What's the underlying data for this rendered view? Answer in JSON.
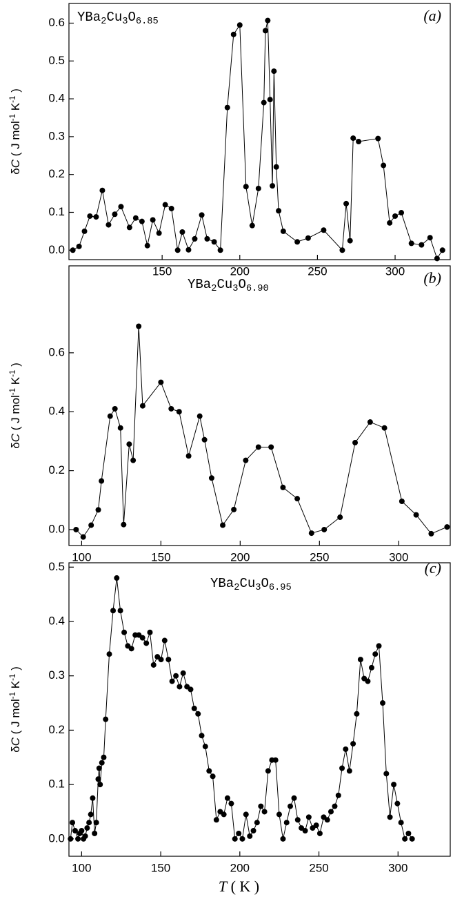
{
  "chart_data": [
    {
      "type": "line",
      "color": "#000000",
      "title_parts": [
        {
          "text": "YBa",
          "style": "normal"
        },
        {
          "text": "2",
          "style": "sub"
        },
        {
          "text": "Cu",
          "style": "normal"
        },
        {
          "text": "3",
          "style": "sub"
        },
        {
          "text": "O",
          "style": "normal"
        },
        {
          "text": "6.85",
          "style": "sub"
        }
      ],
      "panel_label": "(a)",
      "y_label_parts": [
        {
          "text": "δ",
          "style": "normal"
        },
        {
          "text": "C",
          "style": "italic"
        },
        {
          "text": " ( J mol",
          "style": "normal"
        },
        {
          "text": "-1",
          "style": "sup"
        },
        {
          "text": " K",
          "style": "normal"
        },
        {
          "text": "-1",
          "style": "sup"
        },
        {
          "text": " )",
          "style": "normal"
        }
      ],
      "x": [
        92.5,
        96.5,
        100,
        103.5,
        107.5,
        111.5,
        115.5,
        119.5,
        123.5,
        129,
        133,
        137,
        140.5,
        144,
        148,
        152,
        156,
        160,
        163,
        167,
        171,
        175.5,
        179,
        183.5,
        187.5,
        192,
        196,
        200,
        204,
        208,
        212,
        215.5,
        216.5,
        218,
        219.5,
        221,
        222,
        223.5,
        225,
        228,
        237,
        244,
        254,
        266,
        268.5,
        271,
        273,
        276.5,
        289,
        292.5,
        296.5,
        300,
        304,
        310.5,
        317,
        322.5,
        327,
        330.5
      ],
      "values": [
        0.0,
        0.01,
        0.05,
        0.09,
        0.088,
        0.158,
        0.067,
        0.095,
        0.115,
        0.06,
        0.085,
        0.076,
        0.012,
        0.08,
        0.045,
        0.12,
        0.11,
        0.0,
        0.048,
        0.001,
        0.03,
        0.093,
        0.03,
        0.022,
        0.0,
        0.377,
        0.57,
        0.595,
        0.168,
        0.065,
        0.163,
        0.39,
        0.58,
        0.607,
        0.398,
        0.17,
        0.473,
        0.22,
        0.104,
        0.05,
        0.022,
        0.032,
        0.053,
        0.0,
        0.123,
        0.025,
        0.296,
        0.287,
        0.295,
        0.224,
        0.072,
        0.09,
        0.099,
        0.018,
        0.014,
        0.033,
        -0.022,
        0.0
      ],
      "xlim": [
        90,
        335.5
      ],
      "ylim": [
        -0.025,
        0.652
      ],
      "xticks": [
        150,
        200,
        250,
        300
      ],
      "yticks": [
        {
          "value": 0,
          "label": "0.0"
        },
        {
          "value": 0.1,
          "label": "0.1"
        },
        {
          "value": 0.2,
          "label": "0.2"
        },
        {
          "value": 0.3,
          "label": "0.3"
        },
        {
          "value": 0.4,
          "label": "0.4"
        },
        {
          "value": 0.5,
          "label": "0.5"
        },
        {
          "value": 0.6,
          "label": "0.6"
        }
      ]
    },
    {
      "type": "line",
      "color": "#000000",
      "title_parts": [
        {
          "text": "YBa",
          "style": "normal"
        },
        {
          "text": "2",
          "style": "sub"
        },
        {
          "text": "Cu",
          "style": "normal"
        },
        {
          "text": "3",
          "style": "sub"
        },
        {
          "text": "O",
          "style": "normal"
        },
        {
          "text": "6.90",
          "style": "sub"
        }
      ],
      "panel_label": "(b)",
      "y_label_parts": [
        {
          "text": "δ",
          "style": "normal"
        },
        {
          "text": "C",
          "style": "italic"
        },
        {
          "text": " ( J mol",
          "style": "normal"
        },
        {
          "text": "-1",
          "style": "sup"
        },
        {
          "text": " K",
          "style": "normal"
        },
        {
          "text": "-1",
          "style": "sup"
        },
        {
          "text": " )",
          "style": "normal"
        }
      ],
      "x": [
        96.5,
        101,
        106,
        110.5,
        112.5,
        118,
        121,
        124.5,
        126.5,
        130,
        132.5,
        136,
        138.5,
        150,
        156.5,
        161.5,
        167.5,
        174.5,
        177.5,
        182,
        189,
        196,
        203.5,
        211.5,
        219.5,
        227,
        236,
        245,
        253,
        263,
        272.5,
        282,
        291,
        302,
        311,
        320.5,
        330.5
      ],
      "values": [
        0.0,
        -0.025,
        0.015,
        0.067,
        0.165,
        0.385,
        0.41,
        0.345,
        0.017,
        0.29,
        0.235,
        0.69,
        0.42,
        0.5,
        0.41,
        0.4,
        0.25,
        0.385,
        0.305,
        0.175,
        0.015,
        0.068,
        0.235,
        0.28,
        0.28,
        0.143,
        0.105,
        -0.012,
        0.0,
        0.042,
        0.295,
        0.365,
        0.345,
        0.096,
        0.05,
        -0.014,
        0.009
      ],
      "xlim": [
        92,
        332.5
      ],
      "ylim": [
        -0.054,
        0.895
      ],
      "xticks": [
        100,
        150,
        200,
        250,
        300
      ],
      "yticks": [
        {
          "value": 0,
          "label": "0.0"
        },
        {
          "value": 0.2,
          "label": "0.2"
        },
        {
          "value": 0.4,
          "label": "0.4"
        },
        {
          "value": 0.6,
          "label": "0.6"
        }
      ]
    },
    {
      "type": "line",
      "color": "#000000",
      "title_parts": [
        {
          "text": "YBa",
          "style": "normal"
        },
        {
          "text": "2",
          "style": "sub"
        },
        {
          "text": "Cu",
          "style": "normal"
        },
        {
          "text": "3",
          "style": "sub"
        },
        {
          "text": "O",
          "style": "normal"
        },
        {
          "text": "6.95",
          "style": "sub"
        }
      ],
      "panel_label": "(c)",
      "y_label_parts": [
        {
          "text": "δ",
          "style": "normal"
        },
        {
          "text": "C",
          "style": "italic"
        },
        {
          "text": " ( J mol",
          "style": "normal"
        },
        {
          "text": "-1",
          "style": "sup"
        },
        {
          "text": " K",
          "style": "normal"
        },
        {
          "text": "-1",
          "style": "sup"
        },
        {
          "text": " )",
          "style": "normal"
        }
      ],
      "x_label_parts": [
        {
          "text": "T",
          "style": "italic"
        },
        {
          "text": "   ( K )",
          "style": "normal"
        }
      ],
      "x": [
        93,
        94.2,
        95.9,
        97.7,
        98.8,
        100,
        101.2,
        102.3,
        103.5,
        104.7,
        105.8,
        107,
        108.2,
        109.3,
        110.5,
        111.1,
        111.7,
        112.8,
        114,
        115.2,
        117.5,
        119.9,
        122.2,
        124.5,
        126.9,
        129.2,
        131.5,
        133.9,
        136.2,
        138.5,
        140.9,
        143.2,
        145.5,
        147.9,
        150.2,
        152.5,
        154.9,
        157.2,
        159.6,
        161.9,
        164.2,
        166.6,
        168.9,
        171.2,
        173.6,
        175.9,
        178.2,
        180.6,
        182.9,
        185.2,
        187.6,
        189.9,
        192.2,
        194.6,
        196.9,
        199.3,
        201.6,
        203.9,
        206.3,
        208.6,
        210.9,
        213.3,
        215.6,
        217.9,
        220.3,
        222.6,
        224.9,
        227.3,
        229.6,
        231.9,
        234.3,
        236.6,
        238.9,
        241.3,
        243.6,
        246,
        248.3,
        250.6,
        253,
        255.3,
        257.6,
        260,
        262.3,
        264.6,
        266.9,
        269.3,
        271.6,
        273.9,
        276.3,
        278.6,
        280.9,
        283.3,
        285.6,
        287.9,
        290.3,
        292.6,
        294.9,
        297.3,
        299.6,
        301.9,
        304.3,
        306.6,
        308.9
      ],
      "values": [
        0.0,
        0.03,
        0.015,
        0.0,
        0.01,
        0.015,
        0.0,
        0.005,
        0.02,
        0.03,
        0.045,
        0.075,
        0.01,
        0.03,
        0.11,
        0.13,
        0.1,
        0.14,
        0.15,
        0.22,
        0.34,
        0.42,
        0.48,
        0.42,
        0.38,
        0.355,
        0.35,
        0.375,
        0.375,
        0.37,
        0.36,
        0.38,
        0.32,
        0.335,
        0.33,
        0.365,
        0.33,
        0.29,
        0.3,
        0.28,
        0.305,
        0.28,
        0.275,
        0.24,
        0.23,
        0.19,
        0.17,
        0.125,
        0.115,
        0.035,
        0.05,
        0.045,
        0.075,
        0.065,
        0.0,
        0.01,
        0.0,
        0.045,
        0.005,
        0.015,
        0.03,
        0.06,
        0.05,
        0.125,
        0.145,
        0.145,
        0.045,
        0.0,
        0.03,
        0.06,
        0.075,
        0.035,
        0.02,
        0.015,
        0.04,
        0.02,
        0.025,
        0.01,
        0.04,
        0.035,
        0.05,
        0.06,
        0.08,
        0.13,
        0.165,
        0.125,
        0.175,
        0.23,
        0.33,
        0.295,
        0.29,
        0.315,
        0.34,
        0.355,
        0.25,
        0.12,
        0.04,
        0.1,
        0.065,
        0.03,
        0.0,
        0.01,
        0.0
      ],
      "xlim": [
        92,
        333
      ],
      "ylim": [
        -0.032,
        0.508
      ],
      "xticks": [
        100,
        150,
        200,
        250,
        300
      ],
      "yticks": [
        {
          "value": 0,
          "label": "0.0"
        },
        {
          "value": 0.1,
          "label": "0.1"
        },
        {
          "value": 0.2,
          "label": "0.2"
        },
        {
          "value": 0.3,
          "label": "0.3"
        },
        {
          "value": 0.4,
          "label": "0.4"
        },
        {
          "value": 0.5,
          "label": "0.5"
        }
      ]
    }
  ]
}
